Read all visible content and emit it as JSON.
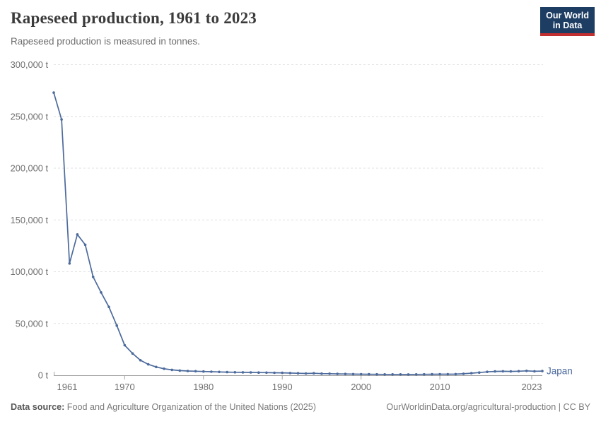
{
  "header": {
    "title": "Rapeseed production, 1961 to 2023",
    "subtitle": "Rapeseed production is measured in tonnes."
  },
  "logo": {
    "line1": "Our World",
    "line2": "in Data",
    "bg_color": "#1d3d63",
    "accent_color": "#c22f2f"
  },
  "chart_data": {
    "type": "line",
    "title": "Rapeseed production, 1961 to 2023",
    "subtitle": "Rapeseed production is measured in tonnes.",
    "entity": "Japan",
    "unit": "tonnes",
    "xlabel": "",
    "ylabel": "",
    "xlim": [
      1961,
      2023
    ],
    "ylim": [
      0,
      300000
    ],
    "grid": "horizontal-dashed",
    "legend": "line-end-label",
    "line_color": "#4C6A9C",
    "x": [
      1961,
      1962,
      1963,
      1964,
      1965,
      1966,
      1967,
      1968,
      1969,
      1970,
      1971,
      1972,
      1973,
      1974,
      1975,
      1976,
      1977,
      1978,
      1979,
      1980,
      1981,
      1982,
      1983,
      1984,
      1985,
      1986,
      1987,
      1988,
      1989,
      1990,
      1991,
      1992,
      1993,
      1994,
      1995,
      1996,
      1997,
      1998,
      1999,
      2000,
      2001,
      2002,
      2003,
      2004,
      2005,
      2006,
      2007,
      2008,
      2009,
      2010,
      2011,
      2012,
      2013,
      2014,
      2015,
      2016,
      2017,
      2018,
      2019,
      2020,
      2021,
      2022,
      2023
    ],
    "series": [
      {
        "name": "Japan",
        "color": "#4C6A9C",
        "values": [
          273000,
          247000,
          108000,
          136000,
          126000,
          95000,
          80000,
          66000,
          48000,
          29000,
          21000,
          14500,
          10500,
          8000,
          6300,
          5200,
          4500,
          4100,
          3900,
          3600,
          3400,
          3200,
          3000,
          2900,
          2800,
          2700,
          2600,
          2500,
          2400,
          2300,
          2100,
          1900,
          1700,
          1900,
          1600,
          1500,
          1300,
          1200,
          1100,
          1000,
          950,
          900,
          850,
          800,
          800,
          750,
          800,
          900,
          950,
          1000,
          1000,
          1100,
          1400,
          2000,
          2600,
          3300,
          3700,
          3800,
          3700,
          3900,
          4200,
          3800,
          4000
        ]
      }
    ],
    "yticks": [
      {
        "value": 0,
        "label": "0 t"
      },
      {
        "value": 50000,
        "label": "50,000 t"
      },
      {
        "value": 100000,
        "label": "100,000 t"
      },
      {
        "value": 150000,
        "label": "150,000 t"
      },
      {
        "value": 200000,
        "label": "200,000 t"
      },
      {
        "value": 250000,
        "label": "250,000 t"
      },
      {
        "value": 300000,
        "label": "300,000 t"
      }
    ],
    "xticks": [
      {
        "year": 1961,
        "label": "1961",
        "offset": 0
      },
      {
        "year": 1970,
        "label": "1970",
        "offset": 0
      },
      {
        "year": 1980,
        "label": "1980",
        "offset": 0
      },
      {
        "year": 1990,
        "label": "1990",
        "offset": 0
      },
      {
        "year": 2000,
        "label": "2000",
        "offset": 0
      },
      {
        "year": 2010,
        "label": "2010",
        "offset": 0
      },
      {
        "year": 2023,
        "label": "2023",
        "offset": -15
      }
    ]
  },
  "footer": {
    "source_label": "Data source:",
    "source_text": "Food and Agriculture Organization of the United Nations (2025)",
    "attribution": "OurWorldinData.org/agricultural-production | CC BY"
  }
}
